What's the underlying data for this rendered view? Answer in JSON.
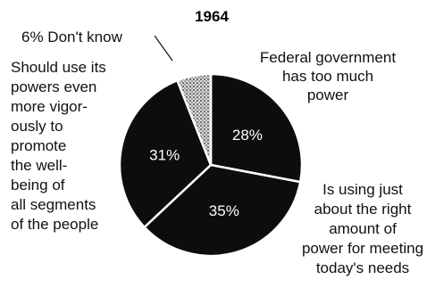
{
  "chart_data": {
    "type": "pie",
    "title": "1964",
    "slices": [
      {
        "value": 28,
        "value_label": "28%",
        "label_lines": [
          "Federal government",
          "has too much",
          "power"
        ],
        "color": "#0d0d0d",
        "pattern": "solid"
      },
      {
        "value": 35,
        "value_label": "35%",
        "label_lines": [
          "Is using just",
          "about the right",
          "amount of",
          "power for meeting",
          "today's needs"
        ],
        "color": "#0d0d0d",
        "pattern": "solid"
      },
      {
        "value": 31,
        "value_label": "31%",
        "label_lines": [
          "Should use its",
          "powers even",
          "more vigor-",
          "ously to",
          "promote",
          "the well-",
          "being of",
          "all segments",
          "of the people"
        ],
        "color": "#0d0d0d",
        "pattern": "solid"
      },
      {
        "value": 6,
        "value_label": "",
        "label_lines": [
          "6% Don't know"
        ],
        "color": "#6b6b6b",
        "pattern": "stipple"
      }
    ]
  }
}
